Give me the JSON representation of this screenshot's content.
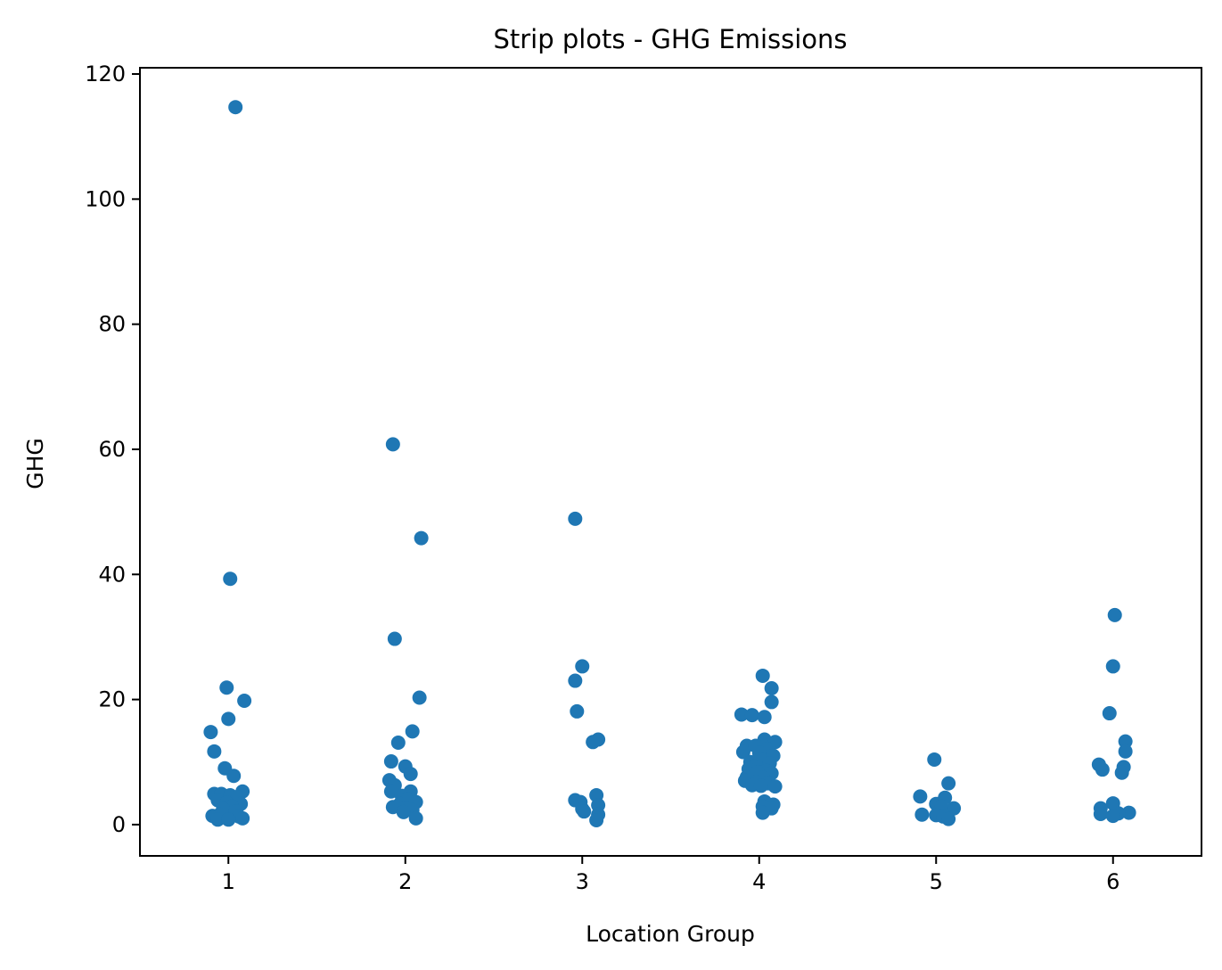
{
  "chart_data": {
    "type": "scatter",
    "subtype": "strip",
    "title": "Strip plots - GHG Emissions",
    "xlabel": "Location Group",
    "ylabel": "GHG",
    "categories": [
      "1",
      "2",
      "3",
      "4",
      "5",
      "6"
    ],
    "ylim": [
      -5,
      121
    ],
    "yticks": [
      0,
      20,
      40,
      60,
      80,
      100,
      120
    ],
    "grid": false,
    "legend": "none",
    "point_color": "#1f77b4",
    "points": [
      {
        "x": 1.04,
        "y": 114.7
      },
      {
        "x": 1.01,
        "y": 39.3
      },
      {
        "x": 0.99,
        "y": 21.9
      },
      {
        "x": 1.09,
        "y": 19.8
      },
      {
        "x": 1.0,
        "y": 16.9
      },
      {
        "x": 0.9,
        "y": 14.8
      },
      {
        "x": 0.92,
        "y": 11.7
      },
      {
        "x": 0.98,
        "y": 9.0
      },
      {
        "x": 1.03,
        "y": 7.8
      },
      {
        "x": 1.08,
        "y": 5.3
      },
      {
        "x": 0.92,
        "y": 4.9
      },
      {
        "x": 0.96,
        "y": 4.9
      },
      {
        "x": 1.01,
        "y": 4.7
      },
      {
        "x": 1.05,
        "y": 4.4
      },
      {
        "x": 0.94,
        "y": 3.9
      },
      {
        "x": 0.99,
        "y": 3.5
      },
      {
        "x": 1.07,
        "y": 3.3
      },
      {
        "x": 1.02,
        "y": 2.9
      },
      {
        "x": 0.97,
        "y": 2.5
      },
      {
        "x": 1.04,
        "y": 2.1
      },
      {
        "x": 0.95,
        "y": 1.6
      },
      {
        "x": 0.91,
        "y": 1.4
      },
      {
        "x": 1.06,
        "y": 1.3
      },
      {
        "x": 1.08,
        "y": 1.0
      },
      {
        "x": 0.94,
        "y": 0.8
      },
      {
        "x": 1.0,
        "y": 0.8
      },
      {
        "x": 1.93,
        "y": 60.8
      },
      {
        "x": 2.09,
        "y": 45.8
      },
      {
        "x": 1.94,
        "y": 29.7
      },
      {
        "x": 2.08,
        "y": 20.3
      },
      {
        "x": 2.04,
        "y": 14.9
      },
      {
        "x": 1.96,
        "y": 13.1
      },
      {
        "x": 1.92,
        "y": 10.1
      },
      {
        "x": 2.0,
        "y": 9.3
      },
      {
        "x": 2.03,
        "y": 8.1
      },
      {
        "x": 1.91,
        "y": 7.1
      },
      {
        "x": 1.94,
        "y": 6.3
      },
      {
        "x": 1.92,
        "y": 5.3
      },
      {
        "x": 2.03,
        "y": 5.3
      },
      {
        "x": 1.98,
        "y": 4.6
      },
      {
        "x": 2.01,
        "y": 4.1
      },
      {
        "x": 2.06,
        "y": 3.6
      },
      {
        "x": 1.97,
        "y": 3.3
      },
      {
        "x": 1.93,
        "y": 2.8
      },
      {
        "x": 2.0,
        "y": 2.6
      },
      {
        "x": 2.04,
        "y": 2.3
      },
      {
        "x": 1.99,
        "y": 2.0
      },
      {
        "x": 2.06,
        "y": 1.0
      },
      {
        "x": 2.96,
        "y": 48.9
      },
      {
        "x": 3.0,
        "y": 25.3
      },
      {
        "x": 2.96,
        "y": 23.0
      },
      {
        "x": 2.97,
        "y": 18.1
      },
      {
        "x": 3.09,
        "y": 13.6
      },
      {
        "x": 3.06,
        "y": 13.2
      },
      {
        "x": 3.08,
        "y": 4.7
      },
      {
        "x": 2.96,
        "y": 3.9
      },
      {
        "x": 2.99,
        "y": 3.6
      },
      {
        "x": 3.09,
        "y": 3.1
      },
      {
        "x": 3.0,
        "y": 2.5
      },
      {
        "x": 3.01,
        "y": 2.1
      },
      {
        "x": 3.09,
        "y": 1.6
      },
      {
        "x": 3.08,
        "y": 0.7
      },
      {
        "x": 4.02,
        "y": 23.8
      },
      {
        "x": 4.07,
        "y": 21.8
      },
      {
        "x": 4.07,
        "y": 19.6
      },
      {
        "x": 3.9,
        "y": 17.6
      },
      {
        "x": 3.96,
        "y": 17.5
      },
      {
        "x": 4.03,
        "y": 17.2
      },
      {
        "x": 4.03,
        "y": 13.6
      },
      {
        "x": 4.09,
        "y": 13.2
      },
      {
        "x": 3.93,
        "y": 12.6
      },
      {
        "x": 3.98,
        "y": 12.6
      },
      {
        "x": 4.05,
        "y": 12.1
      },
      {
        "x": 3.91,
        "y": 11.6
      },
      {
        "x": 4.0,
        "y": 11.5
      },
      {
        "x": 4.08,
        "y": 11.0
      },
      {
        "x": 4.01,
        "y": 10.4
      },
      {
        "x": 3.95,
        "y": 10.0
      },
      {
        "x": 4.06,
        "y": 9.8
      },
      {
        "x": 3.97,
        "y": 9.3
      },
      {
        "x": 3.94,
        "y": 8.9
      },
      {
        "x": 4.04,
        "y": 8.6
      },
      {
        "x": 3.99,
        "y": 8.4
      },
      {
        "x": 4.07,
        "y": 8.2
      },
      {
        "x": 3.93,
        "y": 7.6
      },
      {
        "x": 4.02,
        "y": 7.5
      },
      {
        "x": 3.92,
        "y": 7.0
      },
      {
        "x": 3.98,
        "y": 6.8
      },
      {
        "x": 4.05,
        "y": 6.6
      },
      {
        "x": 3.96,
        "y": 6.3
      },
      {
        "x": 4.01,
        "y": 6.2
      },
      {
        "x": 4.09,
        "y": 6.1
      },
      {
        "x": 4.03,
        "y": 3.7
      },
      {
        "x": 4.08,
        "y": 3.2
      },
      {
        "x": 4.02,
        "y": 2.9
      },
      {
        "x": 4.07,
        "y": 2.6
      },
      {
        "x": 4.02,
        "y": 1.9
      },
      {
        "x": 4.99,
        "y": 10.4
      },
      {
        "x": 5.07,
        "y": 6.6
      },
      {
        "x": 4.91,
        "y": 4.5
      },
      {
        "x": 5.05,
        "y": 4.3
      },
      {
        "x": 5.0,
        "y": 3.3
      },
      {
        "x": 5.03,
        "y": 2.9
      },
      {
        "x": 5.1,
        "y": 2.6
      },
      {
        "x": 4.92,
        "y": 1.6
      },
      {
        "x": 5.0,
        "y": 1.5
      },
      {
        "x": 5.04,
        "y": 1.3
      },
      {
        "x": 5.07,
        "y": 0.9
      },
      {
        "x": 6.01,
        "y": 33.5
      },
      {
        "x": 6.0,
        "y": 25.3
      },
      {
        "x": 5.98,
        "y": 17.8
      },
      {
        "x": 6.07,
        "y": 13.3
      },
      {
        "x": 6.07,
        "y": 11.7
      },
      {
        "x": 5.92,
        "y": 9.6
      },
      {
        "x": 6.06,
        "y": 9.2
      },
      {
        "x": 5.94,
        "y": 8.8
      },
      {
        "x": 6.05,
        "y": 8.3
      },
      {
        "x": 6.0,
        "y": 3.4
      },
      {
        "x": 5.93,
        "y": 2.6
      },
      {
        "x": 5.93,
        "y": 1.7
      },
      {
        "x": 6.09,
        "y": 1.9
      },
      {
        "x": 6.03,
        "y": 1.8
      },
      {
        "x": 6.0,
        "y": 1.4
      }
    ]
  }
}
